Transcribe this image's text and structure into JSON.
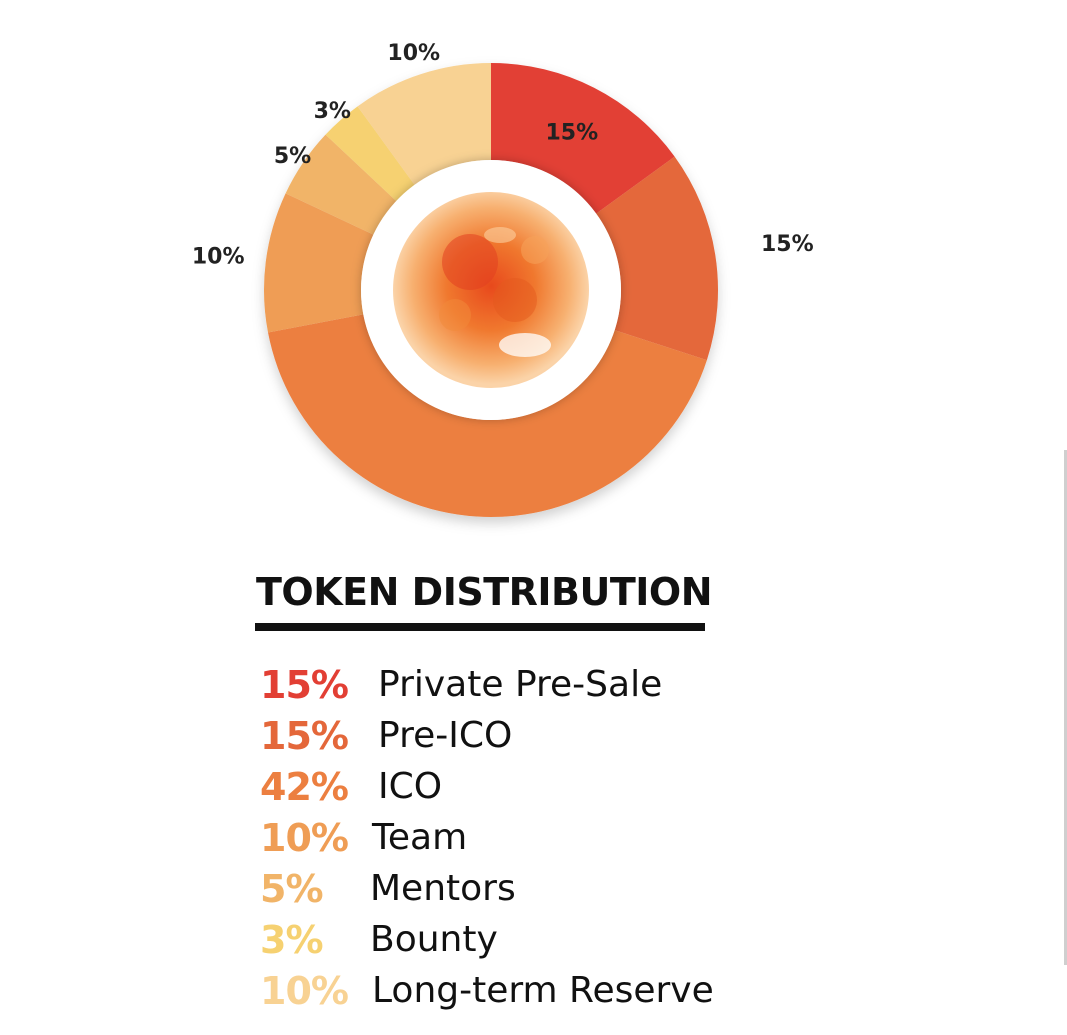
{
  "chart_data": {
    "type": "pie",
    "variant": "donut",
    "title": "TOKEN DISTRIBUTION",
    "categories": [
      "Private Pre-Sale",
      "Pre-ICO",
      "ICO",
      "Team",
      "Mentors",
      "Bounty",
      "Long-term Reserve"
    ],
    "values": [
      15,
      15,
      42,
      10,
      5,
      3,
      10
    ],
    "value_labels": [
      "15%",
      "15%",
      "42%",
      "10%",
      "5%",
      "3%",
      "10%"
    ],
    "colors": [
      "#e23f34",
      "#e4673a",
      "#ec7f40",
      "#ef9d55",
      "#f1b468",
      "#f6d171",
      "#f8d293"
    ],
    "legend_placement": "bottom"
  },
  "center_image": {
    "icon": "sun-icon"
  }
}
